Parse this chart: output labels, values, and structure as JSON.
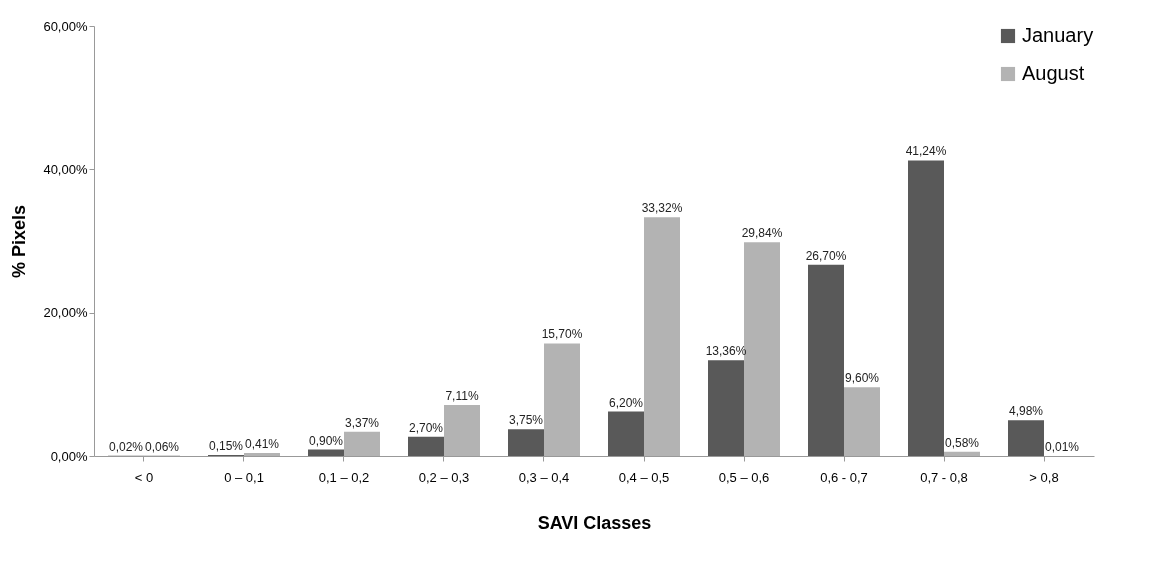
{
  "chart_data": {
    "type": "bar",
    "xlabel": "SAVI Classes",
    "ylabel": "% Pixels",
    "categories": [
      "< 0",
      "0 – 0,1",
      "0,1 – 0,2",
      "0,2 – 0,3",
      "0,3 – 0,4",
      "0,4 – 0,5",
      "0,5 – 0,6",
      "0,6 - 0,7",
      "0,7 - 0,8",
      "> 0,8"
    ],
    "series": [
      {
        "name": "January",
        "color": "#595959",
        "values": [
          0.02,
          0.15,
          0.9,
          2.7,
          3.75,
          6.2,
          13.36,
          26.7,
          41.24,
          4.98
        ],
        "value_labels": [
          "0,02%",
          "0,15%",
          "0,90%",
          "2,70%",
          "3,75%",
          "6,20%",
          "13,36%",
          "26,70%",
          "41,24%",
          "4,98%"
        ]
      },
      {
        "name": "August",
        "color": "#b3b3b3",
        "values": [
          0.06,
          0.41,
          3.37,
          7.11,
          15.7,
          33.32,
          29.84,
          9.6,
          0.58,
          0.01
        ],
        "value_labels": [
          "0,06%",
          "0,41%",
          "3,37%",
          "7,11%",
          "15,70%",
          "33,32%",
          "29,84%",
          "9,60%",
          "0,58%",
          "0,01%"
        ]
      }
    ],
    "ylim": [
      0,
      60
    ],
    "yticks": [
      {
        "value": 0,
        "label": "0,00%"
      },
      {
        "value": 20,
        "label": "20,00%"
      },
      {
        "value": 40,
        "label": "40,00%"
      },
      {
        "value": 60,
        "label": "60,00%"
      }
    ],
    "grid": false,
    "legend": "top right"
  }
}
